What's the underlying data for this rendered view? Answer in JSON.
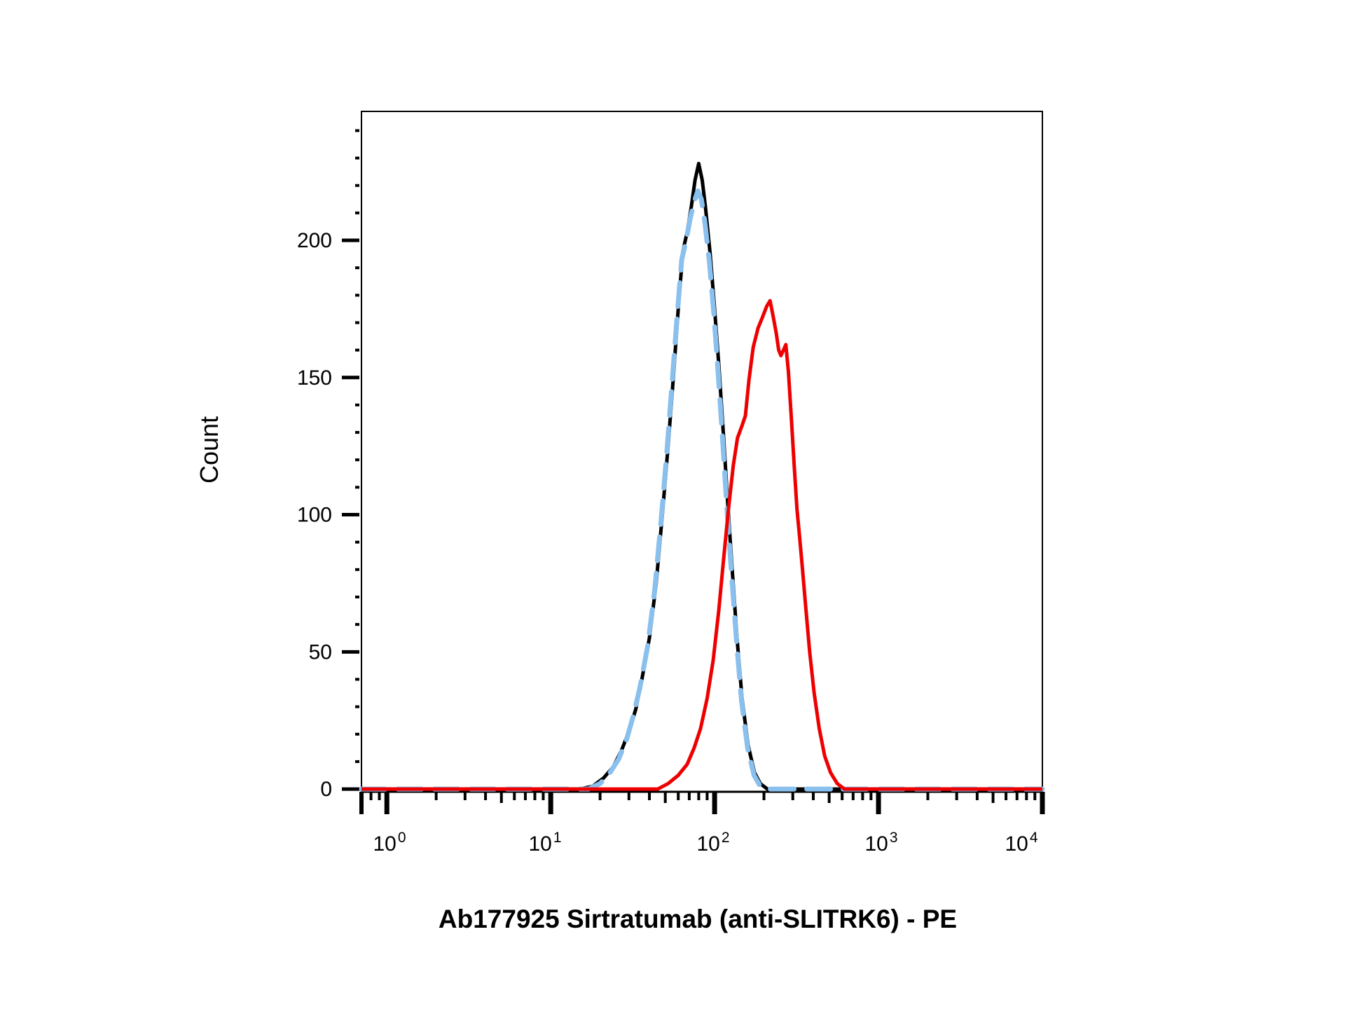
{
  "chart_data": {
    "type": "line",
    "title": "",
    "xlabel": "Ab177925 Sirtratumab (anti-SLITRK6) - PE",
    "ylabel": "Count",
    "x_scale": "log",
    "xlim": [
      0.7,
      10000
    ],
    "ylim": [
      -1,
      247
    ],
    "y_ticks": [
      0,
      50,
      100,
      150,
      200
    ],
    "y_tick_labels": [
      "0",
      "50",
      "100",
      "150",
      "200"
    ],
    "x_ticks": [
      1,
      10,
      100,
      1000,
      10000
    ],
    "x_tick_labels": [
      {
        "base": "10",
        "exp": "0"
      },
      {
        "base": "10",
        "exp": "1"
      },
      {
        "base": "10",
        "exp": "2"
      },
      {
        "base": "10",
        "exp": "3"
      },
      {
        "base": "10",
        "exp": "4"
      }
    ],
    "grid": false,
    "legend": "none",
    "series": [
      {
        "color": "#000000",
        "style": "solid",
        "points": [
          [
            0.7,
            0
          ],
          [
            15,
            0
          ],
          [
            18,
            1
          ],
          [
            21,
            4
          ],
          [
            24,
            8
          ],
          [
            27,
            14
          ],
          [
            30,
            21
          ],
          [
            33,
            29
          ],
          [
            36,
            40
          ],
          [
            40,
            55
          ],
          [
            44,
            75
          ],
          [
            48,
            100
          ],
          [
            52,
            125
          ],
          [
            56,
            150
          ],
          [
            60,
            175
          ],
          [
            64,
            196
          ],
          [
            68,
            203
          ],
          [
            72,
            212
          ],
          [
            76,
            222
          ],
          [
            80,
            228
          ],
          [
            84,
            222
          ],
          [
            88,
            212
          ],
          [
            94,
            195
          ],
          [
            100,
            175
          ],
          [
            106,
            155
          ],
          [
            113,
            130
          ],
          [
            120,
            105
          ],
          [
            128,
            80
          ],
          [
            137,
            55
          ],
          [
            147,
            33
          ],
          [
            160,
            16
          ],
          [
            175,
            6
          ],
          [
            190,
            2
          ],
          [
            210,
            0
          ],
          [
            10000,
            0
          ]
        ]
      },
      {
        "color": "#8ac0ee",
        "style": "dashed",
        "points": [
          [
            0.7,
            0
          ],
          [
            17,
            0
          ],
          [
            20,
            2
          ],
          [
            23,
            6
          ],
          [
            26,
            11
          ],
          [
            29,
            18
          ],
          [
            32,
            27
          ],
          [
            35,
            37
          ],
          [
            39,
            52
          ],
          [
            43,
            72
          ],
          [
            47,
            97
          ],
          [
            51,
            122
          ],
          [
            55,
            148
          ],
          [
            59,
            172
          ],
          [
            63,
            193
          ],
          [
            67,
            200
          ],
          [
            71,
            208
          ],
          [
            75,
            214
          ],
          [
            79,
            218
          ],
          [
            83,
            215
          ],
          [
            87,
            207
          ],
          [
            93,
            192
          ],
          [
            99,
            173
          ],
          [
            105,
            152
          ],
          [
            112,
            127
          ],
          [
            119,
            102
          ],
          [
            127,
            78
          ],
          [
            136,
            54
          ],
          [
            146,
            32
          ],
          [
            159,
            15
          ],
          [
            174,
            5
          ],
          [
            190,
            1
          ],
          [
            210,
            0
          ],
          [
            10000,
            0
          ]
        ]
      },
      {
        "color": "#ee0000",
        "style": "solid",
        "points": [
          [
            0.7,
            0
          ],
          [
            45,
            0
          ],
          [
            52,
            2
          ],
          [
            60,
            5
          ],
          [
            68,
            9
          ],
          [
            75,
            15
          ],
          [
            82,
            22
          ],
          [
            90,
            33
          ],
          [
            98,
            47
          ],
          [
            106,
            65
          ],
          [
            114,
            85
          ],
          [
            122,
            103
          ],
          [
            130,
            118
          ],
          [
            138,
            128
          ],
          [
            146,
            132
          ],
          [
            154,
            136
          ],
          [
            162,
            149
          ],
          [
            172,
            161
          ],
          [
            184,
            168
          ],
          [
            196,
            172
          ],
          [
            208,
            176
          ],
          [
            218,
            178
          ],
          [
            228,
            172
          ],
          [
            238,
            166
          ],
          [
            246,
            160
          ],
          [
            254,
            158
          ],
          [
            263,
            160
          ],
          [
            272,
            162
          ],
          [
            282,
            152
          ],
          [
            294,
            135
          ],
          [
            306,
            118
          ],
          [
            318,
            102
          ],
          [
            330,
            92
          ],
          [
            344,
            80
          ],
          [
            360,
            66
          ],
          [
            380,
            50
          ],
          [
            405,
            35
          ],
          [
            435,
            22
          ],
          [
            470,
            12
          ],
          [
            510,
            6
          ],
          [
            560,
            2
          ],
          [
            620,
            0
          ],
          [
            10000,
            0
          ]
        ]
      }
    ]
  }
}
